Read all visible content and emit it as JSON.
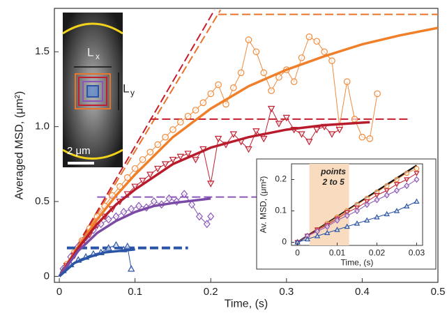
{
  "chart_data": [
    {
      "type": "scatter",
      "xlabel": "Time, (s)",
      "ylabel": "Averaged MSD, (μm²)",
      "xlim": [
        -0.0065,
        0.5
      ],
      "ylim": [
        -0.04,
        1.79
      ],
      "xticks": [
        0,
        0.1,
        0.2,
        0.3,
        0.4,
        0.5
      ],
      "yticks": [
        0,
        0.5,
        {
          "value": 1,
          "label": "1.0"
        },
        1.5
      ],
      "image_labels": {
        "lx": [
          "L",
          "x"
        ],
        "ly": [
          "L",
          "y"
        ],
        "scale": "2 μm"
      },
      "slopes": [
        {
          "color": "#e8732a",
          "x": [
            0,
            0.213
          ],
          "values": [
            0,
            1.78
          ]
        },
        {
          "color": "#c41e2e",
          "x": [
            0,
            0.205
          ],
          "values": [
            0,
            1.78
          ]
        }
      ],
      "plateaus": [
        {
          "color": "#e8732a",
          "x": [
            0.21,
            0.5
          ],
          "values": [
            1.75,
            1.75
          ]
        },
        {
          "color": "#c41e2e",
          "x": [
            0.12,
            0.46
          ],
          "values": [
            1.05,
            1.05
          ]
        },
        {
          "color": "#8a57b8",
          "x": [
            0.05,
            0.3
          ],
          "values": [
            0.53,
            0.53
          ]
        },
        {
          "color": "#2a54a6",
          "x": [
            0.01,
            0.17
          ],
          "values": [
            0.19,
            0.19
          ]
        }
      ],
      "series": [
        {
          "color": "#f08a3a",
          "marker": "circle",
          "x": [
            0.01,
            0.02,
            0.03,
            0.04,
            0.05,
            0.06,
            0.07,
            0.08,
            0.09,
            0.1,
            0.11,
            0.12,
            0.13,
            0.14,
            0.15,
            0.16,
            0.17,
            0.18,
            0.19,
            0.2,
            0.21,
            0.22,
            0.23,
            0.24,
            0.25,
            0.26,
            0.27,
            0.28,
            0.29,
            0.3,
            0.31,
            0.32,
            0.33,
            0.34,
            0.35,
            0.36,
            0.37,
            0.38,
            0.39,
            0.4,
            0.41,
            0.42
          ],
          "values": [
            0.08,
            0.16,
            0.24,
            0.32,
            0.4,
            0.47,
            0.54,
            0.6,
            0.66,
            0.72,
            0.78,
            0.83,
            0.88,
            0.93,
            0.98,
            1.03,
            1.07,
            1.11,
            1.16,
            1.22,
            1.28,
            1.15,
            1.26,
            1.36,
            1.58,
            1.5,
            1.36,
            1.24,
            1.33,
            1.38,
            1.3,
            1.46,
            1.6,
            1.57,
            1.5,
            1.44,
            1.0,
            1.3,
            1.05,
            0.93,
            0.92,
            1.22
          ]
        },
        {
          "color": "#c01f30",
          "marker": "triangle-down",
          "x": [
            0.01,
            0.02,
            0.03,
            0.04,
            0.05,
            0.06,
            0.07,
            0.08,
            0.09,
            0.1,
            0.11,
            0.12,
            0.13,
            0.14,
            0.15,
            0.16,
            0.17,
            0.18,
            0.19,
            0.2,
            0.21,
            0.22,
            0.23,
            0.24,
            0.25,
            0.26,
            0.27,
            0.28,
            0.29,
            0.3,
            0.31,
            0.32,
            0.33,
            0.34,
            0.35,
            0.36,
            0.37
          ],
          "values": [
            0.07,
            0.14,
            0.21,
            0.28,
            0.34,
            0.4,
            0.45,
            0.5,
            0.55,
            0.6,
            0.64,
            0.68,
            0.72,
            0.75,
            0.78,
            0.8,
            0.82,
            0.78,
            0.85,
            0.62,
            0.92,
            0.88,
            0.95,
            0.9,
            0.85,
            0.97,
            0.92,
            1.12,
            1.02,
            1.06,
            0.98,
            0.95,
            0.9,
            0.98,
            1.0,
            0.95,
            0.98
          ]
        },
        {
          "color": "#8a57b8",
          "marker": "diamond",
          "x": [
            0.005,
            0.015,
            0.025,
            0.035,
            0.045,
            0.055,
            0.065,
            0.075,
            0.085,
            0.095,
            0.105,
            0.115,
            0.125,
            0.135,
            0.145,
            0.155,
            0.165,
            0.175,
            0.185,
            0.195,
            0.2
          ],
          "values": [
            0.05,
            0.13,
            0.2,
            0.26,
            0.31,
            0.35,
            0.38,
            0.4,
            0.43,
            0.45,
            0.47,
            0.46,
            0.5,
            0.48,
            0.52,
            0.5,
            0.55,
            0.48,
            0.4,
            0.35,
            0.4
          ]
        },
        {
          "color": "#2a54a6",
          "marker": "triangle-up",
          "x": [
            0.005,
            0.015,
            0.025,
            0.035,
            0.045,
            0.055,
            0.065,
            0.075,
            0.085,
            0.09,
            0.095
          ],
          "values": [
            0.04,
            0.08,
            0.11,
            0.13,
            0.15,
            0.16,
            0.19,
            0.21,
            0.18,
            0.2,
            0.05
          ]
        }
      ],
      "fits": [
        {
          "color": "#f07f2a",
          "x": [
            0,
            0.025,
            0.05,
            0.075,
            0.1,
            0.15,
            0.2,
            0.25,
            0.3,
            0.35,
            0.4,
            0.45,
            0.5
          ],
          "values": [
            0,
            0.2,
            0.38,
            0.54,
            0.68,
            0.93,
            1.12,
            1.27,
            1.38,
            1.47,
            1.55,
            1.61,
            1.66
          ]
        },
        {
          "color": "#b81c2c",
          "x": [
            0,
            0.025,
            0.05,
            0.075,
            0.1,
            0.15,
            0.2,
            0.25,
            0.3,
            0.35,
            0.41
          ],
          "values": [
            0,
            0.19,
            0.35,
            0.48,
            0.58,
            0.75,
            0.86,
            0.93,
            0.98,
            1.01,
            1.03
          ]
        },
        {
          "color": "#7b4aa6",
          "x": [
            0,
            0.025,
            0.05,
            0.075,
            0.1,
            0.125,
            0.15,
            0.2
          ],
          "values": [
            0,
            0.17,
            0.29,
            0.37,
            0.43,
            0.47,
            0.49,
            0.52
          ]
        },
        {
          "color": "#2a54a6",
          "x": [
            0,
            0.02,
            0.04,
            0.06,
            0.08,
            0.1
          ],
          "values": [
            0,
            0.09,
            0.13,
            0.16,
            0.17,
            0.18
          ]
        }
      ]
    },
    {
      "type": "scatter",
      "xlabel": "Time, (s)",
      "ylabel": "Av. MSD, (μm²)",
      "xlim": [
        -0.0015,
        0.0315
      ],
      "ylim": [
        -0.01,
        0.25
      ],
      "xticks": [
        0,
        0.01,
        0.02,
        0.03
      ],
      "yticks": [
        0,
        0.1,
        0.2
      ],
      "span": [
        0.003,
        0.013
      ],
      "annotation": [
        "points",
        "2 to 5"
      ],
      "slopes": [
        {
          "color": "#111111",
          "x": [
            0,
            0.03
          ],
          "values": [
            0,
            0.245
          ]
        }
      ],
      "series": [
        {
          "color": "#f08a3a",
          "marker": "circle",
          "x": [
            0,
            0.0025,
            0.005,
            0.0075,
            0.01,
            0.0125,
            0.015,
            0.0175,
            0.02,
            0.0225,
            0.025,
            0.0275,
            0.03
          ],
          "values": [
            0,
            0.02,
            0.04,
            0.06,
            0.08,
            0.1,
            0.12,
            0.14,
            0.16,
            0.18,
            0.2,
            0.22,
            0.235
          ]
        },
        {
          "color": "#c01f30",
          "marker": "triangle-down",
          "x": [
            0,
            0.0025,
            0.005,
            0.0075,
            0.01,
            0.0125,
            0.015,
            0.0175,
            0.02,
            0.0225,
            0.025,
            0.0275,
            0.03
          ],
          "values": [
            0,
            0.02,
            0.04,
            0.055,
            0.075,
            0.095,
            0.11,
            0.13,
            0.15,
            0.165,
            0.185,
            0.2,
            0.22
          ]
        },
        {
          "color": "#8a57b8",
          "marker": "diamond",
          "x": [
            0,
            0.0025,
            0.005,
            0.0075,
            0.01,
            0.0125,
            0.015,
            0.0175,
            0.02,
            0.0225,
            0.025,
            0.0275,
            0.03
          ],
          "values": [
            0,
            0.02,
            0.035,
            0.05,
            0.07,
            0.085,
            0.1,
            0.12,
            0.135,
            0.15,
            0.165,
            0.18,
            0.2
          ]
        },
        {
          "color": "#2a54a6",
          "marker": "triangle-up",
          "x": [
            0,
            0.0025,
            0.005,
            0.0075,
            0.01,
            0.0125,
            0.015,
            0.0175,
            0.02,
            0.0225,
            0.025,
            0.0275,
            0.03
          ],
          "values": [
            0,
            0.01,
            0.02,
            0.03,
            0.04,
            0.05,
            0.06,
            0.07,
            0.08,
            0.09,
            0.1,
            0.115,
            0.13
          ]
        }
      ]
    }
  ]
}
